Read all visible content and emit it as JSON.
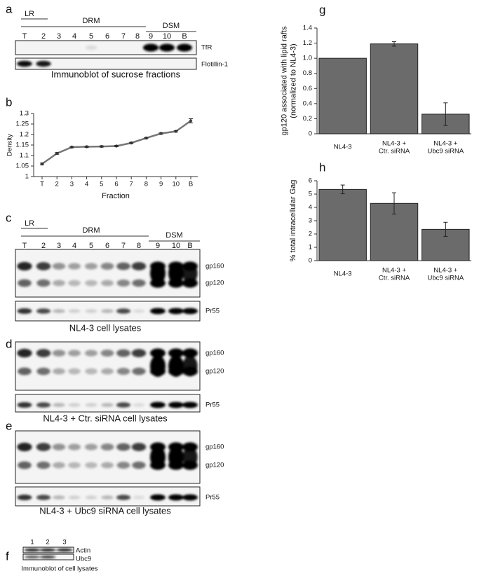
{
  "panels": {
    "a": {
      "letter": "a",
      "groups": [
        "LR",
        "DRM",
        "DSM"
      ],
      "lanes": [
        "T",
        "2",
        "3",
        "4",
        "5",
        "6",
        "7",
        "8",
        "9",
        "10",
        "B"
      ],
      "bands": [
        "TfR",
        "Flotillin-1"
      ],
      "caption": "Immunoblot of sucrose fractions"
    },
    "c": {
      "letter": "c",
      "groups": [
        "LR",
        "DRM",
        "DSM"
      ],
      "lanes": [
        "T",
        "2",
        "3",
        "4",
        "5",
        "6",
        "7",
        "8",
        "9",
        "10",
        "B"
      ],
      "bands": [
        "gp160",
        "gp120",
        "Pr55"
      ],
      "caption": "NL4-3 cell lysates"
    },
    "d": {
      "letter": "d",
      "bands": [
        "gp160",
        "gp120",
        "Pr55"
      ],
      "caption": "NL4-3 + Ctr. siRNA cell lysates"
    },
    "e": {
      "letter": "e",
      "bands": [
        "gp160",
        "gp120",
        "Pr55"
      ],
      "caption": "NL4-3 + Ubc9 siRNA cell lysates"
    },
    "f": {
      "letter": "f",
      "lanes": [
        "1",
        "2",
        "3"
      ],
      "bands": [
        "Actin",
        "Ubc9"
      ],
      "caption": "Immunoblot of cell lysates"
    }
  },
  "chart_data": [
    {
      "type": "line",
      "panel_letter": "b",
      "xlabel": "Fraction",
      "ylabel": "Density",
      "categories": [
        "T",
        "2",
        "3",
        "4",
        "5",
        "6",
        "7",
        "8",
        "9",
        "10",
        "B"
      ],
      "values": [
        1.06,
        1.11,
        1.14,
        1.142,
        1.143,
        1.145,
        1.16,
        1.183,
        1.205,
        1.215,
        1.265
      ],
      "errors": [
        0.004,
        0.004,
        0.003,
        0.003,
        0.003,
        0.003,
        0.003,
        0.003,
        0.003,
        0.003,
        0.01
      ],
      "color": "#777777",
      "ylim": [
        1,
        1.3
      ],
      "yticks": [
        1,
        1.05,
        1.1,
        1.15,
        1.2,
        1.25,
        1.3
      ]
    },
    {
      "type": "bar",
      "panel_letter": "g",
      "ylabel": "gp120 associated with lipid rafts\n(normalized to NL4-3)",
      "categories": [
        "NL4-3",
        "NL4-3 +\nCtr. siRNA",
        "NL4-3 +\nUbc9 siRNA"
      ],
      "values": [
        1.0,
        1.19,
        0.26
      ],
      "errors": [
        0,
        0.03,
        0.15
      ],
      "color": "#6b6b6b",
      "ylim": [
        0,
        1.4
      ],
      "yticks": [
        0,
        {
          "value": 0.2,
          "label": "0.2"
        },
        {
          "value": 0.4,
          "label": "0.4"
        },
        {
          "value": 0.6,
          "label": "0.6"
        },
        {
          "value": 0.8,
          "label": "0.8"
        },
        {
          "value": 1,
          "label": "1.0"
        },
        {
          "value": 1.2,
          "label": "1.2"
        },
        {
          "value": 1.4,
          "label": "1.4"
        }
      ]
    },
    {
      "type": "bar",
      "panel_letter": "h",
      "ylabel": "% total intracellular Gag",
      "categories": [
        "NL4-3",
        "NL4-3 +\nCtr. siRNA",
        "NL4-3 +\nUbc9 siRNA"
      ],
      "values": [
        5.35,
        4.3,
        2.35
      ],
      "errors": [
        0.33,
        0.8,
        0.53
      ],
      "color": "#6b6b6b",
      "ylim": [
        0,
        6
      ],
      "yticks": [
        0,
        1,
        2,
        3,
        4,
        5,
        6
      ]
    }
  ]
}
